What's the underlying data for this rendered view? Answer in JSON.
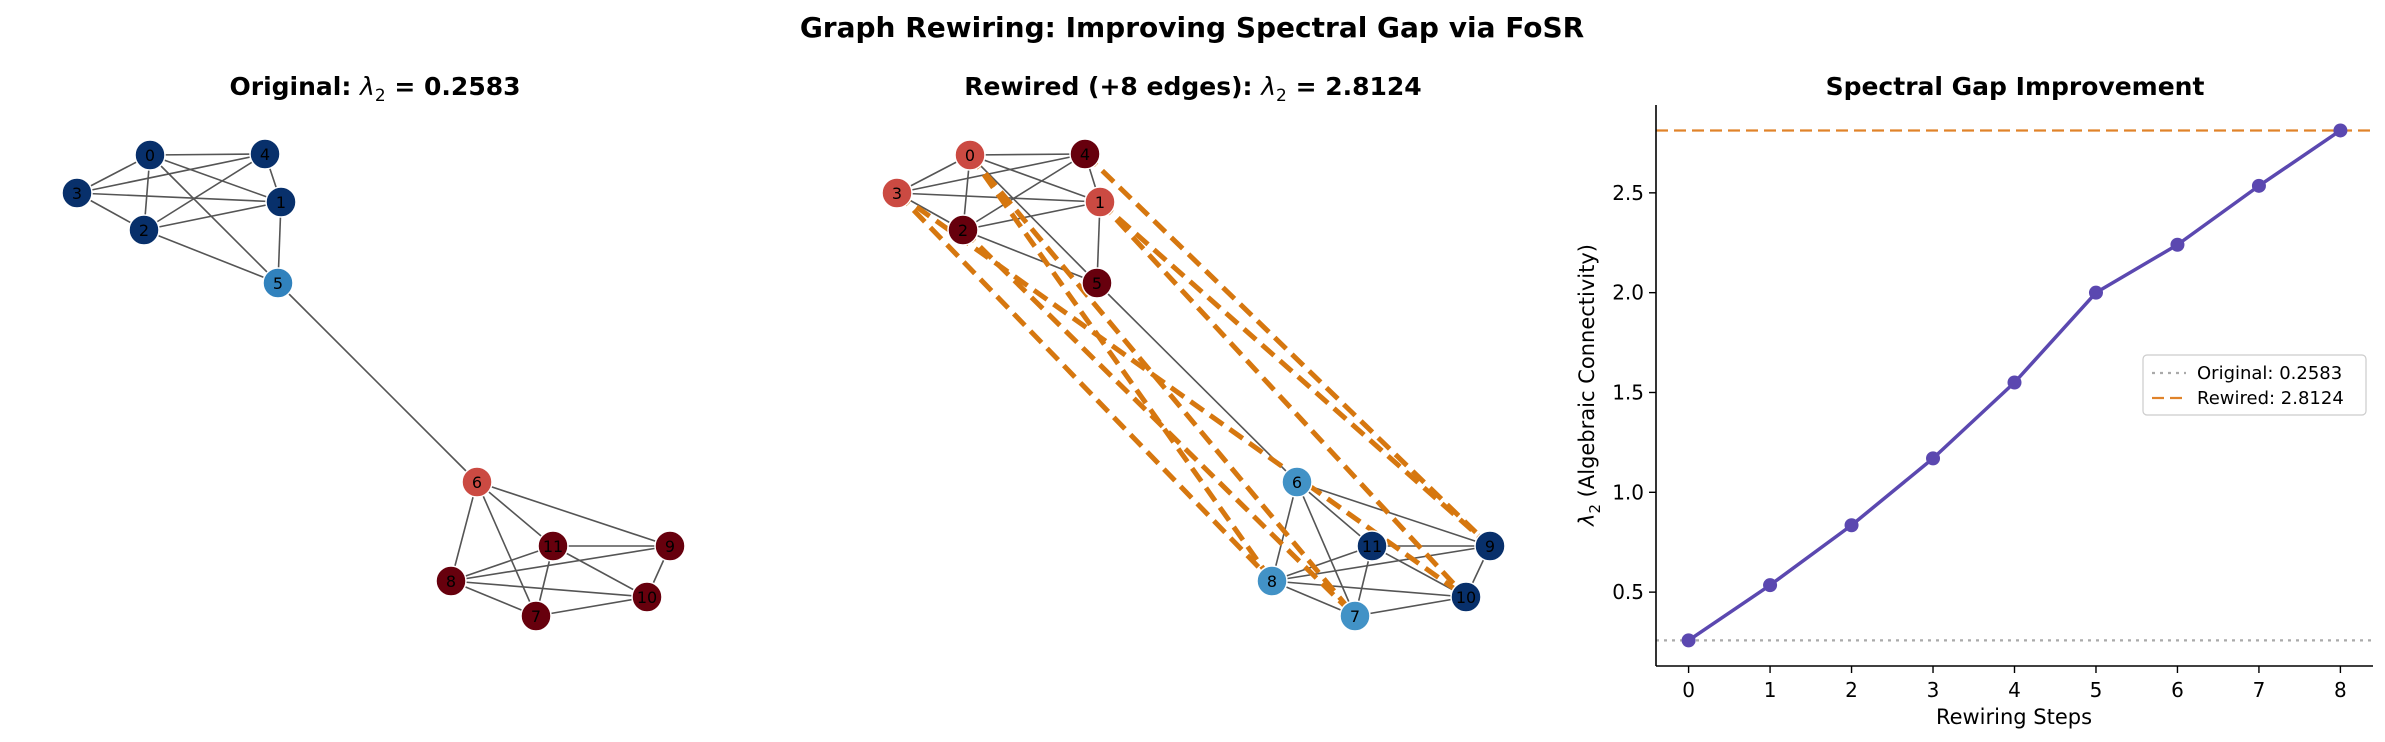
{
  "figure": {
    "suptitle": "Graph Rewiring: Improving Spectral Gap via FoSR"
  },
  "chart_data": [
    {
      "type": "network",
      "panel": "original",
      "title_prefix": "Original: ",
      "title_symbol": "λ",
      "title_subscript": "2",
      "title_suffix": " = 0.2583",
      "nodes": [
        {
          "id": "0",
          "color": "#08306b"
        },
        {
          "id": "1",
          "color": "#08306b"
        },
        {
          "id": "2",
          "color": "#08306b"
        },
        {
          "id": "3",
          "color": "#08306b"
        },
        {
          "id": "4",
          "color": "#08306b"
        },
        {
          "id": "5",
          "color": "#3182bd"
        },
        {
          "id": "6",
          "color": "#cb4a42"
        },
        {
          "id": "7",
          "color": "#67000d"
        },
        {
          "id": "8",
          "color": "#67000d"
        },
        {
          "id": "9",
          "color": "#67000d"
        },
        {
          "id": "10",
          "color": "#67000d"
        },
        {
          "id": "11",
          "color": "#67000d"
        }
      ],
      "edges": [
        [
          "0",
          "1"
        ],
        [
          "0",
          "2"
        ],
        [
          "0",
          "3"
        ],
        [
          "0",
          "4"
        ],
        [
          "0",
          "5"
        ],
        [
          "1",
          "2"
        ],
        [
          "1",
          "3"
        ],
        [
          "1",
          "4"
        ],
        [
          "1",
          "5"
        ],
        [
          "2",
          "3"
        ],
        [
          "2",
          "4"
        ],
        [
          "2",
          "5"
        ],
        [
          "3",
          "4"
        ],
        [
          "5",
          "6"
        ],
        [
          "6",
          "7"
        ],
        [
          "6",
          "8"
        ],
        [
          "6",
          "9"
        ],
        [
          "6",
          "11"
        ],
        [
          "7",
          "8"
        ],
        [
          "7",
          "10"
        ],
        [
          "7",
          "11"
        ],
        [
          "8",
          "9"
        ],
        [
          "8",
          "10"
        ],
        [
          "8",
          "11"
        ],
        [
          "9",
          "10"
        ],
        [
          "9",
          "11"
        ],
        [
          "10",
          "11"
        ]
      ],
      "added_edges": []
    },
    {
      "type": "network",
      "panel": "rewired",
      "title_prefix": "Rewired (+8 edges): ",
      "title_symbol": "λ",
      "title_subscript": "2",
      "title_suffix": " = 2.8124",
      "nodes": [
        {
          "id": "0",
          "color": "#cb4a42"
        },
        {
          "id": "1",
          "color": "#cb4a42"
        },
        {
          "id": "2",
          "color": "#67000d"
        },
        {
          "id": "3",
          "color": "#cb4a42"
        },
        {
          "id": "4",
          "color": "#67000d"
        },
        {
          "id": "5",
          "color": "#67000d"
        },
        {
          "id": "6",
          "color": "#4292c6"
        },
        {
          "id": "7",
          "color": "#4292c6"
        },
        {
          "id": "8",
          "color": "#4292c6"
        },
        {
          "id": "9",
          "color": "#08306b"
        },
        {
          "id": "10",
          "color": "#08306b"
        },
        {
          "id": "11",
          "color": "#08306b"
        }
      ],
      "edges": [
        [
          "0",
          "1"
        ],
        [
          "0",
          "2"
        ],
        [
          "0",
          "3"
        ],
        [
          "0",
          "4"
        ],
        [
          "0",
          "5"
        ],
        [
          "1",
          "2"
        ],
        [
          "1",
          "3"
        ],
        [
          "1",
          "4"
        ],
        [
          "1",
          "5"
        ],
        [
          "2",
          "3"
        ],
        [
          "2",
          "4"
        ],
        [
          "2",
          "5"
        ],
        [
          "3",
          "4"
        ],
        [
          "5",
          "6"
        ],
        [
          "6",
          "7"
        ],
        [
          "6",
          "8"
        ],
        [
          "6",
          "9"
        ],
        [
          "6",
          "11"
        ],
        [
          "7",
          "8"
        ],
        [
          "7",
          "10"
        ],
        [
          "7",
          "11"
        ],
        [
          "8",
          "9"
        ],
        [
          "8",
          "10"
        ],
        [
          "8",
          "11"
        ],
        [
          "9",
          "10"
        ],
        [
          "9",
          "11"
        ],
        [
          "10",
          "11"
        ]
      ],
      "added_edges": [
        [
          "0",
          "7"
        ],
        [
          "0",
          "8"
        ],
        [
          "1",
          "9"
        ],
        [
          "1",
          "10"
        ],
        [
          "2",
          "7"
        ],
        [
          "3",
          "8"
        ],
        [
          "3",
          "10"
        ],
        [
          "4",
          "9"
        ]
      ],
      "added_edge_color": "#d6770f"
    },
    {
      "type": "line",
      "panel": "improvement",
      "title": "Spectral Gap Improvement",
      "xlabel": "Rewiring Steps",
      "ylabel_symbol": "λ",
      "ylabel_subscript": "2",
      "ylabel_suffix": " (Algebraic Connectivity)",
      "x": [
        0,
        1,
        2,
        3,
        4,
        5,
        6,
        7,
        8
      ],
      "y": [
        0.2583,
        0.535,
        0.835,
        1.17,
        1.55,
        2.0,
        2.24,
        2.535,
        2.8124
      ],
      "xlim": [
        -0.4,
        8.4
      ],
      "ylim": [
        0.13,
        2.94
      ],
      "xticks": [
        "0",
        "1",
        "2",
        "3",
        "4",
        "5",
        "6",
        "7",
        "8"
      ],
      "yticks": [
        "0.5",
        "1.0",
        "1.5",
        "2.0",
        "2.5"
      ],
      "ytick_values": [
        0.5,
        1.0,
        1.5,
        2.0,
        2.5
      ],
      "line_color": "#5b48b0",
      "reference_lines": [
        {
          "label": "Original: 0.2583",
          "value": 0.2583,
          "style": "dotted",
          "color": "#aaaaaa"
        },
        {
          "label": "Rewired: 2.8124",
          "value": 2.8124,
          "style": "dashed",
          "color": "#e0832a"
        }
      ],
      "legend_position": "center-right",
      "grid": false
    }
  ]
}
